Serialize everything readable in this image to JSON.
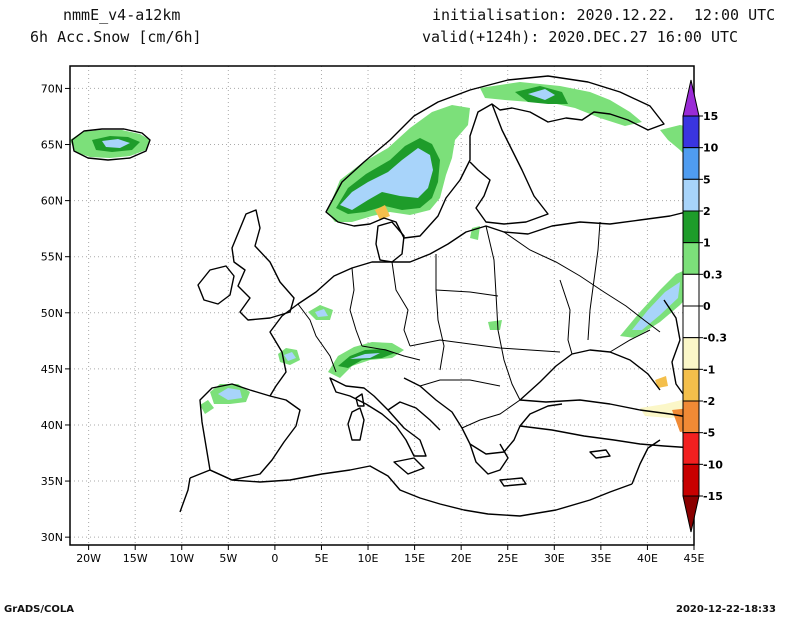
{
  "header": {
    "model": "nmmE_v4-a12km",
    "field": "6h Acc.Snow [cm/6h]",
    "init": "initialisation: 2020.12.22.  12:00 UTC",
    "valid": "valid(+124h): 2020.DEC.27 16:00 UTC"
  },
  "map": {
    "lon_range": [
      -22,
      45
    ],
    "lat_range": [
      29.3,
      72
    ],
    "lon_ticks": [
      {
        "v": -20,
        "label": "20W"
      },
      {
        "v": -15,
        "label": "15W"
      },
      {
        "v": -10,
        "label": "10W"
      },
      {
        "v": -5,
        "label": "5W"
      },
      {
        "v": 0,
        "label": "0"
      },
      {
        "v": 5,
        "label": "5E"
      },
      {
        "v": 10,
        "label": "10E"
      },
      {
        "v": 15,
        "label": "15E"
      },
      {
        "v": 20,
        "label": "20E"
      },
      {
        "v": 25,
        "label": "25E"
      },
      {
        "v": 30,
        "label": "30E"
      },
      {
        "v": 35,
        "label": "35E"
      },
      {
        "v": 40,
        "label": "40E"
      },
      {
        "v": 45,
        "label": "45E"
      }
    ],
    "lat_ticks": [
      {
        "v": 30,
        "label": "30N"
      },
      {
        "v": 35,
        "label": "35N"
      },
      {
        "v": 40,
        "label": "40N"
      },
      {
        "v": 45,
        "label": "45N"
      },
      {
        "v": 50,
        "label": "50N"
      },
      {
        "v": 55,
        "label": "55N"
      },
      {
        "v": 60,
        "label": "60N"
      },
      {
        "v": 65,
        "label": "65N"
      },
      {
        "v": 70,
        "label": "70N"
      }
    ]
  },
  "colorbar": {
    "top_color": "#9a2bd6",
    "bottom_color": "#8a0000",
    "bins": [
      {
        "color": "#3a35e0"
      },
      {
        "color": "#4f9cf0"
      },
      {
        "color": "#a8d4fa"
      },
      {
        "color": "#1e9c2a"
      },
      {
        "color": "#7ce07a"
      },
      {
        "color": "#ffffff"
      },
      {
        "color": "#ffffff"
      },
      {
        "color": "#fbf7c8"
      },
      {
        "color": "#f4bf4b"
      },
      {
        "color": "#f08a35"
      },
      {
        "color": "#f22020"
      },
      {
        "color": "#c80000"
      }
    ],
    "labels": [
      "15",
      "10",
      "5",
      "2",
      "1",
      "0.3",
      "0",
      "-0.3",
      "-1",
      "-2",
      "-5",
      "-10",
      "-15"
    ]
  },
  "footer": {
    "left": "GrADS/COLA",
    "right": "2020-12-22-18:33"
  }
}
